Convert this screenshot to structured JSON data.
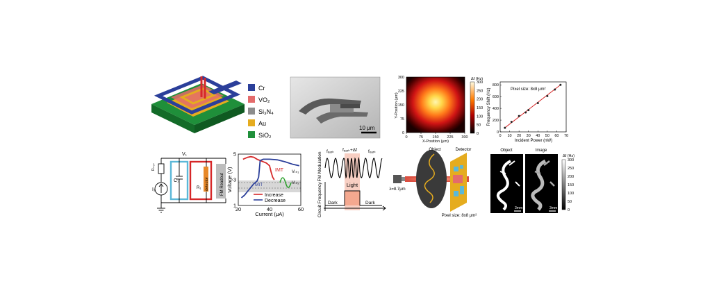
{
  "legend": {
    "items": [
      {
        "label": "Cr",
        "color": "#2b3f9a"
      },
      {
        "label": "VO₂",
        "color": "#e46b6b"
      },
      {
        "label": "Si₃N₄",
        "color": "#8c8c8c"
      },
      {
        "label": "Au",
        "color": "#e5ac1f"
      },
      {
        "label": "SiO₂",
        "color": "#1f8f3a"
      }
    ]
  },
  "sem": {
    "scalebar": "10 μm"
  },
  "heatmap": {
    "xlabel": "X-Position (μm)",
    "ylabel": "Y-Position (μm)",
    "x_ticks": [
      "0",
      "75",
      "150",
      "225",
      "300"
    ],
    "y_ticks": [
      "300",
      "225",
      "150",
      "75",
      "0"
    ],
    "cb_unit": "Δf (Hz)",
    "cb_ticks": [
      "300",
      "250",
      "200",
      "150",
      "100",
      "50",
      "0"
    ]
  },
  "linear_chart": {
    "annotation": "Pixel size: 8x8 μm²",
    "xlabel": "Incident Power (nW)",
    "ylabel": "Frequency Shift (Hz)",
    "x_ticks": [
      "0",
      "10",
      "20",
      "30",
      "40",
      "50",
      "60",
      "70"
    ],
    "y_ticks": [
      "0",
      "200",
      "400",
      "600",
      "800"
    ]
  },
  "chart_data": [
    {
      "type": "scatter",
      "x": [
        5,
        12,
        20,
        27,
        30,
        40,
        50,
        58,
        64
      ],
      "y": [
        70,
        170,
        270,
        330,
        370,
        490,
        610,
        720,
        800
      ],
      "xlim": [
        0,
        70
      ],
      "ylim": [
        0,
        850
      ],
      "xlabel": "Incident Power (nW)",
      "ylabel": "Frequency Shift (Hz)"
    },
    {
      "type": "line",
      "xlabel": "Current (μA)",
      "ylabel": "Voltage (V)",
      "xlim": [
        20,
        60
      ],
      "ylim": [
        1,
        5
      ],
      "series": [
        {
          "name": "Increase",
          "color": "#d62728",
          "x": [
            23,
            26,
            28,
            30,
            32,
            35,
            38,
            40,
            41,
            42,
            43
          ],
          "y": [
            4.6,
            4.75,
            4.8,
            4.75,
            4.6,
            4.45,
            4.3,
            4.1,
            3.6,
            3.2,
            3.0
          ]
        },
        {
          "name": "Decrease",
          "color": "#2b3f9a",
          "x": [
            59,
            55,
            50,
            45,
            40,
            36,
            34,
            33,
            32,
            30,
            28,
            26,
            24,
            22
          ],
          "y": [
            4.1,
            4.2,
            4.4,
            4.55,
            4.6,
            4.6,
            4.5,
            3.2,
            2.9,
            2.7,
            2.4,
            2.1,
            1.8,
            1.6
          ]
        }
      ]
    }
  ],
  "iv_chart": {
    "xlabel": "Current (μA)",
    "ylabel": "Voltage (V)",
    "x_ticks": [
      "20",
      "40",
      "60"
    ],
    "y_ticks": [
      "5",
      "3",
      "1"
    ],
    "imt": "IMT",
    "mit": "MIT",
    "vth1": "Vₜₕ₁",
    "vth2": "Vₜₕ₂",
    "legend_increase": "Increase",
    "legend_decrease": "Decrease"
  },
  "circuit": {
    "v1": "V₁",
    "r": "Rₘ₀ₙ",
    "c": "C₁",
    "i": "I₁",
    "detector": "detector",
    "rd": "R₁",
    "readout": "FM Readout"
  },
  "fm": {
    "f_dark": "fₑₐᵣₖ",
    "f_mod": "fₑₐᵣₖ+Δf",
    "f_dark2": "fₑₐᵣₖ",
    "ylabel_top": "FM Modulation",
    "ylabel_bottom": "Circuit Frequency",
    "light": "Light",
    "dark1": "Dark",
    "dark2": "Dark"
  },
  "imaging": {
    "object": "Object",
    "detector": "Detector",
    "wavelength": "λ=8.7μm",
    "pixel": "Pixel size: 8x8 μm²"
  },
  "result": {
    "object": "Object",
    "image": "Image",
    "unit": "Δf (Hz)",
    "cb_ticks": [
      "300",
      "250",
      "200",
      "150",
      "100",
      "50",
      "0"
    ],
    "scale1": "3mm",
    "scale2": "3mm"
  }
}
